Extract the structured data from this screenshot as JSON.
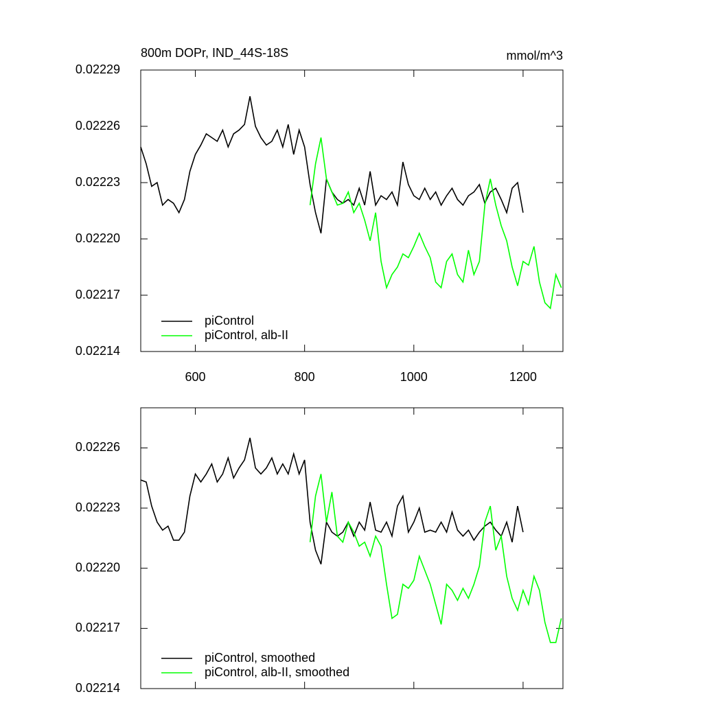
{
  "chart_data": [
    {
      "type": "line",
      "title": "800m DOPr, IND_44S-18S",
      "units": "mmol/m^3",
      "xlim": [
        500,
        1273
      ],
      "xticks": [
        600,
        800,
        1000,
        1200
      ],
      "ylim": [
        0.02214,
        0.02229
      ],
      "yticks": [
        0.02214,
        0.02217,
        {
          "value": 0.0222,
          "label": "0.02220"
        },
        0.02223,
        0.02226,
        0.02229
      ],
      "legend": "lower left",
      "series": [
        {
          "name": "piControl",
          "color": "#000000",
          "x": [
            500,
            510,
            520,
            530,
            540,
            550,
            560,
            570,
            580,
            590,
            600,
            610,
            620,
            630,
            640,
            650,
            660,
            670,
            680,
            690,
            700,
            710,
            720,
            730,
            740,
            750,
            760,
            770,
            780,
            790,
            800,
            810,
            820,
            830,
            840,
            850,
            860,
            870,
            880,
            890,
            900,
            910,
            920,
            930,
            940,
            950,
            960,
            970,
            980,
            990,
            1000,
            1010,
            1020,
            1030,
            1040,
            1050,
            1060,
            1070,
            1080,
            1090,
            1100,
            1110,
            1120,
            1130,
            1140,
            1150,
            1160,
            1170,
            1180,
            1190,
            1200
          ],
          "values": [
            0.022249,
            0.02224,
            0.022228,
            0.02223,
            0.022218,
            0.022221,
            0.022219,
            0.022214,
            0.022221,
            0.022236,
            0.022245,
            0.02225,
            0.022256,
            0.022254,
            0.022252,
            0.022258,
            0.022249,
            0.022256,
            0.022258,
            0.022261,
            0.022276,
            0.02226,
            0.022254,
            0.02225,
            0.022252,
            0.022258,
            0.022249,
            0.022261,
            0.022245,
            0.022258,
            0.022249,
            0.022229,
            0.022214,
            0.022203,
            0.022232,
            0.022225,
            0.022221,
            0.022219,
            0.022221,
            0.022218,
            0.022227,
            0.022218,
            0.022236,
            0.022218,
            0.022223,
            0.022221,
            0.022225,
            0.022218,
            0.022241,
            0.022229,
            0.022223,
            0.022221,
            0.022227,
            0.022221,
            0.022225,
            0.022218,
            0.022223,
            0.022227,
            0.022221,
            0.022218,
            0.022223,
            0.022225,
            0.022229,
            0.022219,
            0.022225,
            0.022227,
            0.022221,
            0.022214,
            0.022227,
            0.02223,
            0.022214
          ]
        },
        {
          "name": "piControl, alb-II",
          "color": "#00ff00",
          "x": [
            810,
            820,
            830,
            840,
            850,
            860,
            870,
            880,
            890,
            900,
            910,
            920,
            930,
            940,
            950,
            960,
            970,
            980,
            990,
            1000,
            1010,
            1020,
            1030,
            1040,
            1050,
            1060,
            1070,
            1080,
            1090,
            1100,
            1110,
            1120,
            1130,
            1140,
            1150,
            1160,
            1170,
            1180,
            1190,
            1200,
            1210,
            1220,
            1230,
            1240,
            1250,
            1260,
            1270
          ],
          "values": [
            0.022218,
            0.02224,
            0.022254,
            0.022232,
            0.022225,
            0.022218,
            0.022219,
            0.022225,
            0.022214,
            0.022219,
            0.02221,
            0.022199,
            0.022214,
            0.022188,
            0.022174,
            0.022181,
            0.022185,
            0.022192,
            0.02219,
            0.022196,
            0.022203,
            0.022196,
            0.02219,
            0.022177,
            0.022174,
            0.022188,
            0.022192,
            0.022181,
            0.022177,
            0.022194,
            0.022181,
            0.022188,
            0.022218,
            0.022232,
            0.022218,
            0.022207,
            0.022199,
            0.022185,
            0.022175,
            0.022188,
            0.022186,
            0.022196,
            0.022177,
            0.022166,
            0.022163,
            0.022181,
            0.022174
          ]
        }
      ]
    },
    {
      "type": "line",
      "xlim": [
        500,
        1273
      ],
      "xticks": [
        600,
        800,
        1000,
        1200
      ],
      "ylim": [
        0.02214,
        0.02228
      ],
      "yticks": [
        0.02214,
        0.02217,
        {
          "value": 0.0222,
          "label": "0.02220"
        },
        0.02223,
        0.02226
      ],
      "legend": "lower left",
      "series": [
        {
          "name": "piControl, smoothed",
          "color": "#000000",
          "x": [
            500,
            510,
            520,
            530,
            540,
            550,
            560,
            570,
            580,
            590,
            600,
            610,
            620,
            630,
            640,
            650,
            660,
            670,
            680,
            690,
            700,
            710,
            720,
            730,
            740,
            750,
            760,
            770,
            780,
            790,
            800,
            810,
            820,
            830,
            840,
            850,
            860,
            870,
            880,
            890,
            900,
            910,
            920,
            930,
            940,
            950,
            960,
            970,
            980,
            990,
            1000,
            1010,
            1020,
            1030,
            1040,
            1050,
            1060,
            1070,
            1080,
            1090,
            1100,
            1110,
            1120,
            1130,
            1140,
            1150,
            1160,
            1170,
            1180,
            1190,
            1200
          ],
          "values": [
            0.022244,
            0.022243,
            0.022231,
            0.022223,
            0.022219,
            0.022221,
            0.022214,
            0.022214,
            0.022218,
            0.022236,
            0.022247,
            0.022243,
            0.022247,
            0.022252,
            0.022243,
            0.022247,
            0.022255,
            0.022245,
            0.02225,
            0.022254,
            0.022265,
            0.02225,
            0.022247,
            0.02225,
            0.022255,
            0.022247,
            0.022252,
            0.022247,
            0.022257,
            0.022247,
            0.022254,
            0.022223,
            0.022209,
            0.022202,
            0.022223,
            0.022218,
            0.022216,
            0.022218,
            0.022223,
            0.022216,
            0.022223,
            0.022219,
            0.022233,
            0.022219,
            0.022218,
            0.022223,
            0.022216,
            0.022231,
            0.022236,
            0.022218,
            0.022223,
            0.02223,
            0.022218,
            0.022219,
            0.022218,
            0.022223,
            0.022218,
            0.022228,
            0.022219,
            0.022216,
            0.022219,
            0.022214,
            0.022218,
            0.022221,
            0.022223,
            0.022219,
            0.022216,
            0.022223,
            0.022213,
            0.022231,
            0.022218
          ]
        },
        {
          "name": "piControl, alb-II, smoothed",
          "color": "#00ff00",
          "x": [
            810,
            820,
            830,
            840,
            850,
            860,
            870,
            880,
            890,
            900,
            910,
            920,
            930,
            940,
            950,
            960,
            970,
            980,
            990,
            1000,
            1010,
            1020,
            1030,
            1040,
            1050,
            1060,
            1070,
            1080,
            1090,
            1100,
            1110,
            1120,
            1130,
            1140,
            1150,
            1160,
            1170,
            1180,
            1190,
            1200,
            1210,
            1220,
            1230,
            1240,
            1250,
            1260,
            1270
          ],
          "values": [
            0.022213,
            0.022236,
            0.022247,
            0.022223,
            0.022238,
            0.022216,
            0.022213,
            0.022223,
            0.022218,
            0.022211,
            0.022213,
            0.022206,
            0.022216,
            0.022211,
            0.022192,
            0.022175,
            0.022177,
            0.022192,
            0.02219,
            0.022194,
            0.022206,
            0.022199,
            0.022192,
            0.022182,
            0.022172,
            0.022192,
            0.022189,
            0.022184,
            0.02219,
            0.022185,
            0.022192,
            0.022201,
            0.022223,
            0.022231,
            0.022209,
            0.022216,
            0.022196,
            0.022185,
            0.022179,
            0.022189,
            0.022182,
            0.022196,
            0.022189,
            0.022173,
            0.022163,
            0.022163,
            0.022175
          ]
        }
      ]
    }
  ]
}
